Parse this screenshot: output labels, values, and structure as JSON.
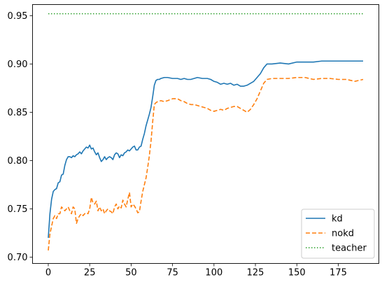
{
  "chart_data": {
    "type": "line",
    "title": "",
    "xlabel": "",
    "ylabel": "",
    "xlim": [
      -9.5,
      199.5
    ],
    "ylim": [
      0.6935,
      0.9615
    ],
    "xticks": [
      0,
      25,
      50,
      75,
      100,
      125,
      150,
      175
    ],
    "yticks": [
      0.7,
      0.75,
      0.8,
      0.85,
      0.9,
      0.95
    ],
    "ytick_format": 2,
    "grid": false,
    "legend": {
      "placement": "lower-right"
    },
    "series": [
      {
        "name": "kd",
        "style": "solid",
        "color": "#1f77b4",
        "points": [
          [
            0,
            0.72
          ],
          [
            1,
            0.745
          ],
          [
            2,
            0.76
          ],
          [
            3,
            0.768
          ],
          [
            4,
            0.77
          ],
          [
            5,
            0.771
          ],
          [
            6,
            0.777
          ],
          [
            7,
            0.778
          ],
          [
            8,
            0.785
          ],
          [
            9,
            0.786
          ],
          [
            10,
            0.795
          ],
          [
            11,
            0.801
          ],
          [
            12,
            0.804
          ],
          [
            13,
            0.804
          ],
          [
            14,
            0.803
          ],
          [
            15,
            0.805
          ],
          [
            16,
            0.804
          ],
          [
            17,
            0.806
          ],
          [
            18,
            0.807
          ],
          [
            19,
            0.809
          ],
          [
            20,
            0.807
          ],
          [
            21,
            0.81
          ],
          [
            22,
            0.812
          ],
          [
            23,
            0.814
          ],
          [
            24,
            0.813
          ],
          [
            25,
            0.816
          ],
          [
            26,
            0.812
          ],
          [
            27,
            0.813
          ],
          [
            28,
            0.809
          ],
          [
            29,
            0.806
          ],
          [
            30,
            0.808
          ],
          [
            31,
            0.803
          ],
          [
            32,
            0.799
          ],
          [
            33,
            0.801
          ],
          [
            34,
            0.804
          ],
          [
            35,
            0.801
          ],
          [
            36,
            0.803
          ],
          [
            37,
            0.804
          ],
          [
            38,
            0.803
          ],
          [
            39,
            0.801
          ],
          [
            40,
            0.806
          ],
          [
            41,
            0.808
          ],
          [
            42,
            0.807
          ],
          [
            43,
            0.803
          ],
          [
            44,
            0.806
          ],
          [
            45,
            0.805
          ],
          [
            46,
            0.808
          ],
          [
            47,
            0.809
          ],
          [
            48,
            0.811
          ],
          [
            49,
            0.81
          ],
          [
            50,
            0.812
          ],
          [
            51,
            0.814
          ],
          [
            52,
            0.815
          ],
          [
            53,
            0.811
          ],
          [
            54,
            0.811
          ],
          [
            55,
            0.814
          ],
          [
            56,
            0.815
          ],
          [
            57,
            0.822
          ],
          [
            58,
            0.828
          ],
          [
            59,
            0.836
          ],
          [
            60,
            0.842
          ],
          [
            61,
            0.848
          ],
          [
            62,
            0.855
          ],
          [
            63,
            0.866
          ],
          [
            64,
            0.878
          ],
          [
            65,
            0.883
          ],
          [
            66,
            0.884
          ],
          [
            67,
            0.884
          ],
          [
            68,
            0.885
          ],
          [
            70,
            0.886
          ],
          [
            72,
            0.886
          ],
          [
            75,
            0.885
          ],
          [
            78,
            0.885
          ],
          [
            80,
            0.884
          ],
          [
            82,
            0.885
          ],
          [
            84,
            0.884
          ],
          [
            86,
            0.884
          ],
          [
            88,
            0.885
          ],
          [
            90,
            0.886
          ],
          [
            93,
            0.885
          ],
          [
            96,
            0.885
          ],
          [
            98,
            0.884
          ],
          [
            100,
            0.882
          ],
          [
            102,
            0.881
          ],
          [
            104,
            0.879
          ],
          [
            106,
            0.88
          ],
          [
            108,
            0.879
          ],
          [
            110,
            0.88
          ],
          [
            112,
            0.878
          ],
          [
            114,
            0.879
          ],
          [
            116,
            0.877
          ],
          [
            118,
            0.877
          ],
          [
            120,
            0.878
          ],
          [
            122,
            0.88
          ],
          [
            124,
            0.882
          ],
          [
            126,
            0.886
          ],
          [
            128,
            0.89
          ],
          [
            130,
            0.896
          ],
          [
            132,
            0.9
          ],
          [
            135,
            0.9
          ],
          [
            140,
            0.901
          ],
          [
            145,
            0.9
          ],
          [
            150,
            0.902
          ],
          [
            155,
            0.902
          ],
          [
            160,
            0.902
          ],
          [
            165,
            0.903
          ],
          [
            170,
            0.903
          ],
          [
            175,
            0.903
          ],
          [
            180,
            0.903
          ],
          [
            185,
            0.903
          ],
          [
            190,
            0.903
          ]
        ]
      },
      {
        "name": "nokd",
        "style": "dashed",
        "color": "#ff7f0e",
        "points": [
          [
            0,
            0.707
          ],
          [
            1,
            0.724
          ],
          [
            2,
            0.732
          ],
          [
            3,
            0.74
          ],
          [
            4,
            0.743
          ],
          [
            5,
            0.74
          ],
          [
            6,
            0.745
          ],
          [
            7,
            0.745
          ],
          [
            8,
            0.752
          ],
          [
            9,
            0.75
          ],
          [
            10,
            0.748
          ],
          [
            11,
            0.75
          ],
          [
            12,
            0.752
          ],
          [
            13,
            0.748
          ],
          [
            14,
            0.745
          ],
          [
            15,
            0.752
          ],
          [
            16,
            0.75
          ],
          [
            17,
            0.735
          ],
          [
            18,
            0.74
          ],
          [
            19,
            0.743
          ],
          [
            20,
            0.745
          ],
          [
            21,
            0.743
          ],
          [
            22,
            0.745
          ],
          [
            23,
            0.746
          ],
          [
            24,
            0.745
          ],
          [
            25,
            0.75
          ],
          [
            26,
            0.762
          ],
          [
            27,
            0.756
          ],
          [
            28,
            0.755
          ],
          [
            29,
            0.758
          ],
          [
            30,
            0.748
          ],
          [
            31,
            0.752
          ],
          [
            32,
            0.748
          ],
          [
            33,
            0.75
          ],
          [
            34,
            0.745
          ],
          [
            35,
            0.748
          ],
          [
            36,
            0.75
          ],
          [
            37,
            0.748
          ],
          [
            38,
            0.747
          ],
          [
            39,
            0.745
          ],
          [
            40,
            0.752
          ],
          [
            41,
            0.755
          ],
          [
            42,
            0.75
          ],
          [
            43,
            0.753
          ],
          [
            44,
            0.751
          ],
          [
            45,
            0.759
          ],
          [
            46,
            0.755
          ],
          [
            47,
            0.752
          ],
          [
            48,
            0.76
          ],
          [
            49,
            0.767
          ],
          [
            50,
            0.752
          ],
          [
            51,
            0.755
          ],
          [
            52,
            0.753
          ],
          [
            53,
            0.75
          ],
          [
            54,
            0.746
          ],
          [
            55,
            0.747
          ],
          [
            56,
            0.758
          ],
          [
            57,
            0.768
          ],
          [
            58,
            0.775
          ],
          [
            59,
            0.782
          ],
          [
            60,
            0.793
          ],
          [
            61,
            0.805
          ],
          [
            62,
            0.82
          ],
          [
            63,
            0.84
          ],
          [
            64,
            0.858
          ],
          [
            65,
            0.86
          ],
          [
            66,
            0.861
          ],
          [
            68,
            0.862
          ],
          [
            70,
            0.861
          ],
          [
            72,
            0.862
          ],
          [
            75,
            0.864
          ],
          [
            78,
            0.864
          ],
          [
            80,
            0.862
          ],
          [
            82,
            0.861
          ],
          [
            84,
            0.859
          ],
          [
            86,
            0.858
          ],
          [
            88,
            0.858
          ],
          [
            90,
            0.857
          ],
          [
            92,
            0.856
          ],
          [
            94,
            0.855
          ],
          [
            96,
            0.854
          ],
          [
            98,
            0.852
          ],
          [
            100,
            0.851
          ],
          [
            102,
            0.852
          ],
          [
            104,
            0.853
          ],
          [
            106,
            0.852
          ],
          [
            108,
            0.854
          ],
          [
            110,
            0.855
          ],
          [
            112,
            0.856
          ],
          [
            114,
            0.856
          ],
          [
            116,
            0.854
          ],
          [
            118,
            0.852
          ],
          [
            120,
            0.85
          ],
          [
            122,
            0.853
          ],
          [
            124,
            0.858
          ],
          [
            126,
            0.864
          ],
          [
            128,
            0.872
          ],
          [
            130,
            0.88
          ],
          [
            132,
            0.884
          ],
          [
            135,
            0.885
          ],
          [
            140,
            0.885
          ],
          [
            145,
            0.885
          ],
          [
            150,
            0.886
          ],
          [
            155,
            0.886
          ],
          [
            160,
            0.884
          ],
          [
            165,
            0.885
          ],
          [
            170,
            0.885
          ],
          [
            175,
            0.884
          ],
          [
            180,
            0.884
          ],
          [
            185,
            0.882
          ],
          [
            190,
            0.884
          ]
        ]
      },
      {
        "name": "teacher",
        "style": "dotted",
        "color": "#2ca02c",
        "points": [
          [
            0,
            0.952
          ],
          [
            190,
            0.952
          ]
        ]
      }
    ]
  }
}
